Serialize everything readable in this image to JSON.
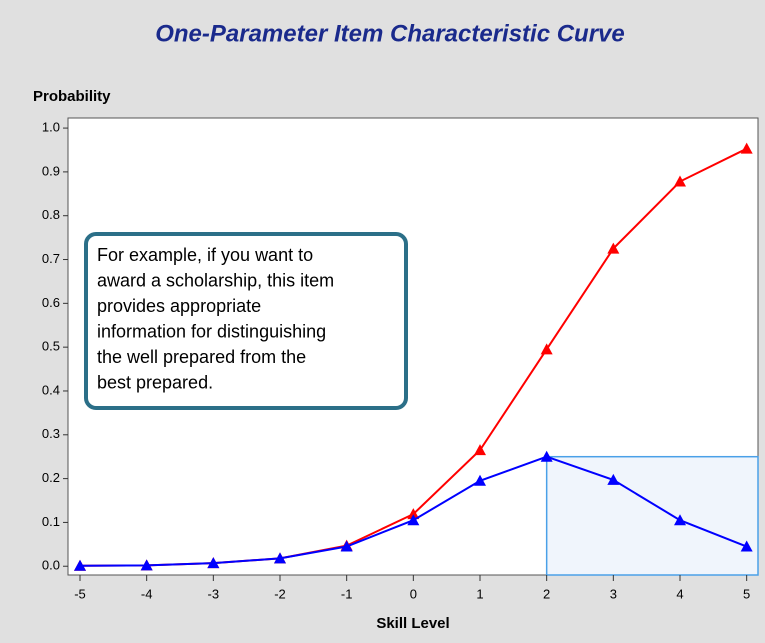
{
  "chart_data": {
    "type": "line",
    "title": "One-Parameter Item Characteristic Curve",
    "y_label": "Probability",
    "x_label": "Skill Level",
    "x": [
      -5,
      -4,
      -3,
      -2,
      -1,
      0,
      1,
      2,
      3,
      4,
      5
    ],
    "series": [
      {
        "color": "#ff0000",
        "values": [
          0.001,
          0.002,
          0.007,
          0.018,
          0.047,
          0.119,
          0.265,
          0.495,
          0.725,
          0.878,
          0.953
        ]
      },
      {
        "color": "#0000ff",
        "values": [
          0.001,
          0.002,
          0.007,
          0.018,
          0.045,
          0.105,
          0.195,
          0.25,
          0.197,
          0.105,
          0.045
        ]
      }
    ],
    "xlim": [
      -5.18,
      5.17
    ],
    "ylim": [
      -0.02,
      1.023
    ],
    "xticks": [
      -5,
      -4,
      -3,
      -2,
      -1,
      0,
      1,
      2,
      3,
      4,
      5
    ],
    "yticks": [
      {
        "value": 0,
        "label": "0.0"
      },
      0.1,
      0.2,
      0.3,
      0.4,
      0.5,
      0.6,
      0.7,
      0.8,
      0.9,
      {
        "value": 1,
        "label": "1.0"
      }
    ],
    "highlight_region": {
      "x": [
        2,
        5.17
      ],
      "y": [
        -0.02,
        0.25
      ]
    },
    "annotation_lines": [
      "For example, if you want to",
      "award a scholarship, this item",
      "provides appropriate",
      "information for distinguishing",
      "the well prepared from the",
      "best prepared."
    ]
  }
}
